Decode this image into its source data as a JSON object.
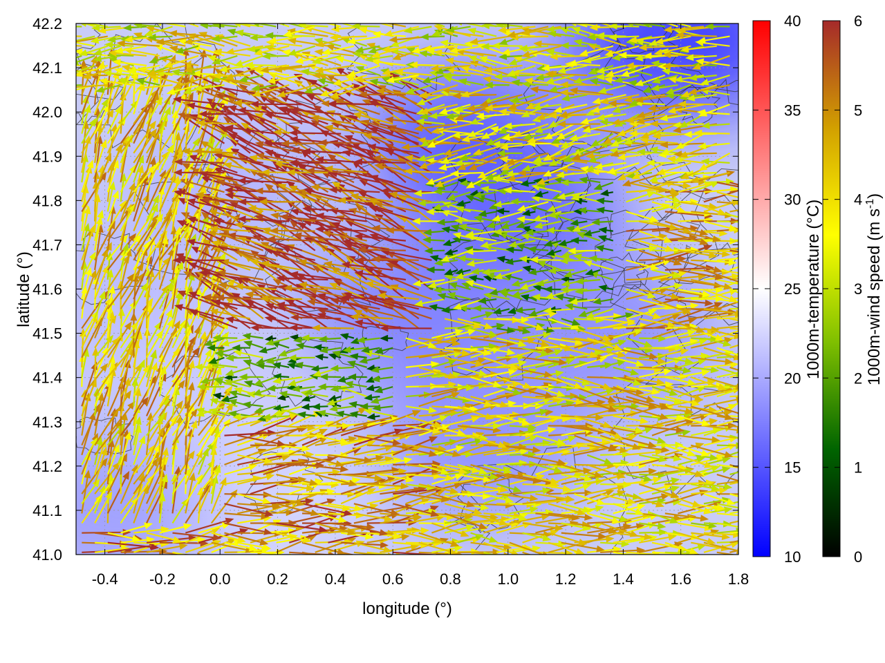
{
  "chart_data": {
    "type": "vector-field",
    "xlabel": "longitude (°)",
    "ylabel": "latitude (°)",
    "xlim": [
      -0.5,
      1.8
    ],
    "ylim": [
      41.0,
      42.2
    ],
    "xticks": [
      -0.4,
      -0.2,
      0.0,
      0.2,
      0.4,
      0.6,
      0.8,
      1.0,
      1.2,
      1.4,
      1.6,
      1.8
    ],
    "xtick_labels": [
      "-0.4",
      "-0.2",
      "0.0",
      "0.2",
      "0.4",
      "0.6",
      "0.8",
      "1.0",
      "1.2",
      "1.4",
      "1.6",
      "1.8"
    ],
    "yticks": [
      41.0,
      41.1,
      41.2,
      41.3,
      41.4,
      41.5,
      41.6,
      41.7,
      41.8,
      41.9,
      42.0,
      42.1,
      42.2
    ],
    "ytick_labels": [
      "41.0",
      "41.1",
      "41.2",
      "41.3",
      "41.4",
      "41.5",
      "41.6",
      "41.7",
      "41.8",
      "41.9",
      "42.0",
      "42.1",
      "42.2"
    ],
    "grid": true,
    "temperature_colorbar": {
      "label": "1000m-temperature (°C)",
      "range": [
        10,
        40
      ],
      "ticks": [
        10,
        15,
        20,
        25,
        30,
        35,
        40
      ],
      "tick_labels": [
        "10",
        "15",
        "20",
        "25",
        "30",
        "35",
        "40"
      ],
      "colors": [
        "#0000ff",
        "#ffffff",
        "#ff0000"
      ]
    },
    "wind_colorbar": {
      "label": "1000m-wind speed (m s-1)",
      "label_main": "1000m-wind speed (m s",
      "label_sup": "-1",
      "label_end": ")",
      "range": [
        0,
        6
      ],
      "ticks": [
        0,
        1,
        2,
        3,
        4,
        5,
        6
      ],
      "tick_labels": [
        "0",
        "1",
        "2",
        "3",
        "4",
        "5",
        "6"
      ],
      "colors": [
        "#000000",
        "#006400",
        "#7fbf00",
        "#ffff00",
        "#d2a000",
        "#a52a2a"
      ]
    },
    "temperature_field": [
      {
        "lon": 1.55,
        "lat": 42.16,
        "t": 13
      },
      {
        "lon": 1.68,
        "lat": 42.17,
        "t": 14
      },
      {
        "lon": 0.85,
        "lat": 41.93,
        "t": 14.5
      },
      {
        "lon": 1.05,
        "lat": 41.78,
        "t": 15.5
      },
      {
        "lon": 0.65,
        "lat": 41.55,
        "t": 17
      },
      {
        "lon": 1.35,
        "lat": 41.5,
        "t": 18
      },
      {
        "lon": 0.9,
        "lat": 41.25,
        "t": 18
      },
      {
        "lon": 0.05,
        "lat": 41.85,
        "t": 20.5
      },
      {
        "lon": -0.35,
        "lat": 41.6,
        "t": 21
      },
      {
        "lon": -0.1,
        "lat": 41.3,
        "t": 22
      },
      {
        "lon": 0.2,
        "lat": 41.12,
        "t": 22.5
      },
      {
        "lon": -0.4,
        "lat": 41.1,
        "t": 19
      }
    ],
    "wind_regions": [
      {
        "lon": [
          -0.48,
          1.78
        ],
        "lat": [
          42.05,
          42.2
        ],
        "dir_deg": 180,
        "speed": 3.6
      },
      {
        "lon": [
          0.0,
          0.75
        ],
        "lat": [
          41.5,
          42.05
        ],
        "dir_deg": 160,
        "speed": 5.8
      },
      {
        "lon": [
          -0.48,
          0.0
        ],
        "lat": [
          41.05,
          42.05
        ],
        "dir_deg": 70,
        "speed": 4.2
      },
      {
        "lon": [
          0.75,
          1.78
        ],
        "lat": [
          41.85,
          42.05
        ],
        "dir_deg": 190,
        "speed": 3.8
      },
      {
        "lon": [
          0.6,
          1.4
        ],
        "lat": [
          41.55,
          41.85
        ],
        "dir_deg": 180,
        "speed": 2.2
      },
      {
        "lon": [
          1.4,
          1.78
        ],
        "lat": [
          41.5,
          41.85
        ],
        "dir_deg": 0,
        "speed": 4.4
      },
      {
        "lon": [
          0.0,
          0.6
        ],
        "lat": [
          41.3,
          41.5
        ],
        "dir_deg": 180,
        "speed": 2.0
      },
      {
        "lon": [
          0.6,
          1.78
        ],
        "lat": [
          41.0,
          41.5
        ],
        "dir_deg": 0,
        "speed": 3.9
      },
      {
        "lon": [
          -0.48,
          0.6
        ],
        "lat": [
          41.0,
          41.3
        ],
        "dir_deg": 5,
        "speed": 4.8
      }
    ]
  }
}
